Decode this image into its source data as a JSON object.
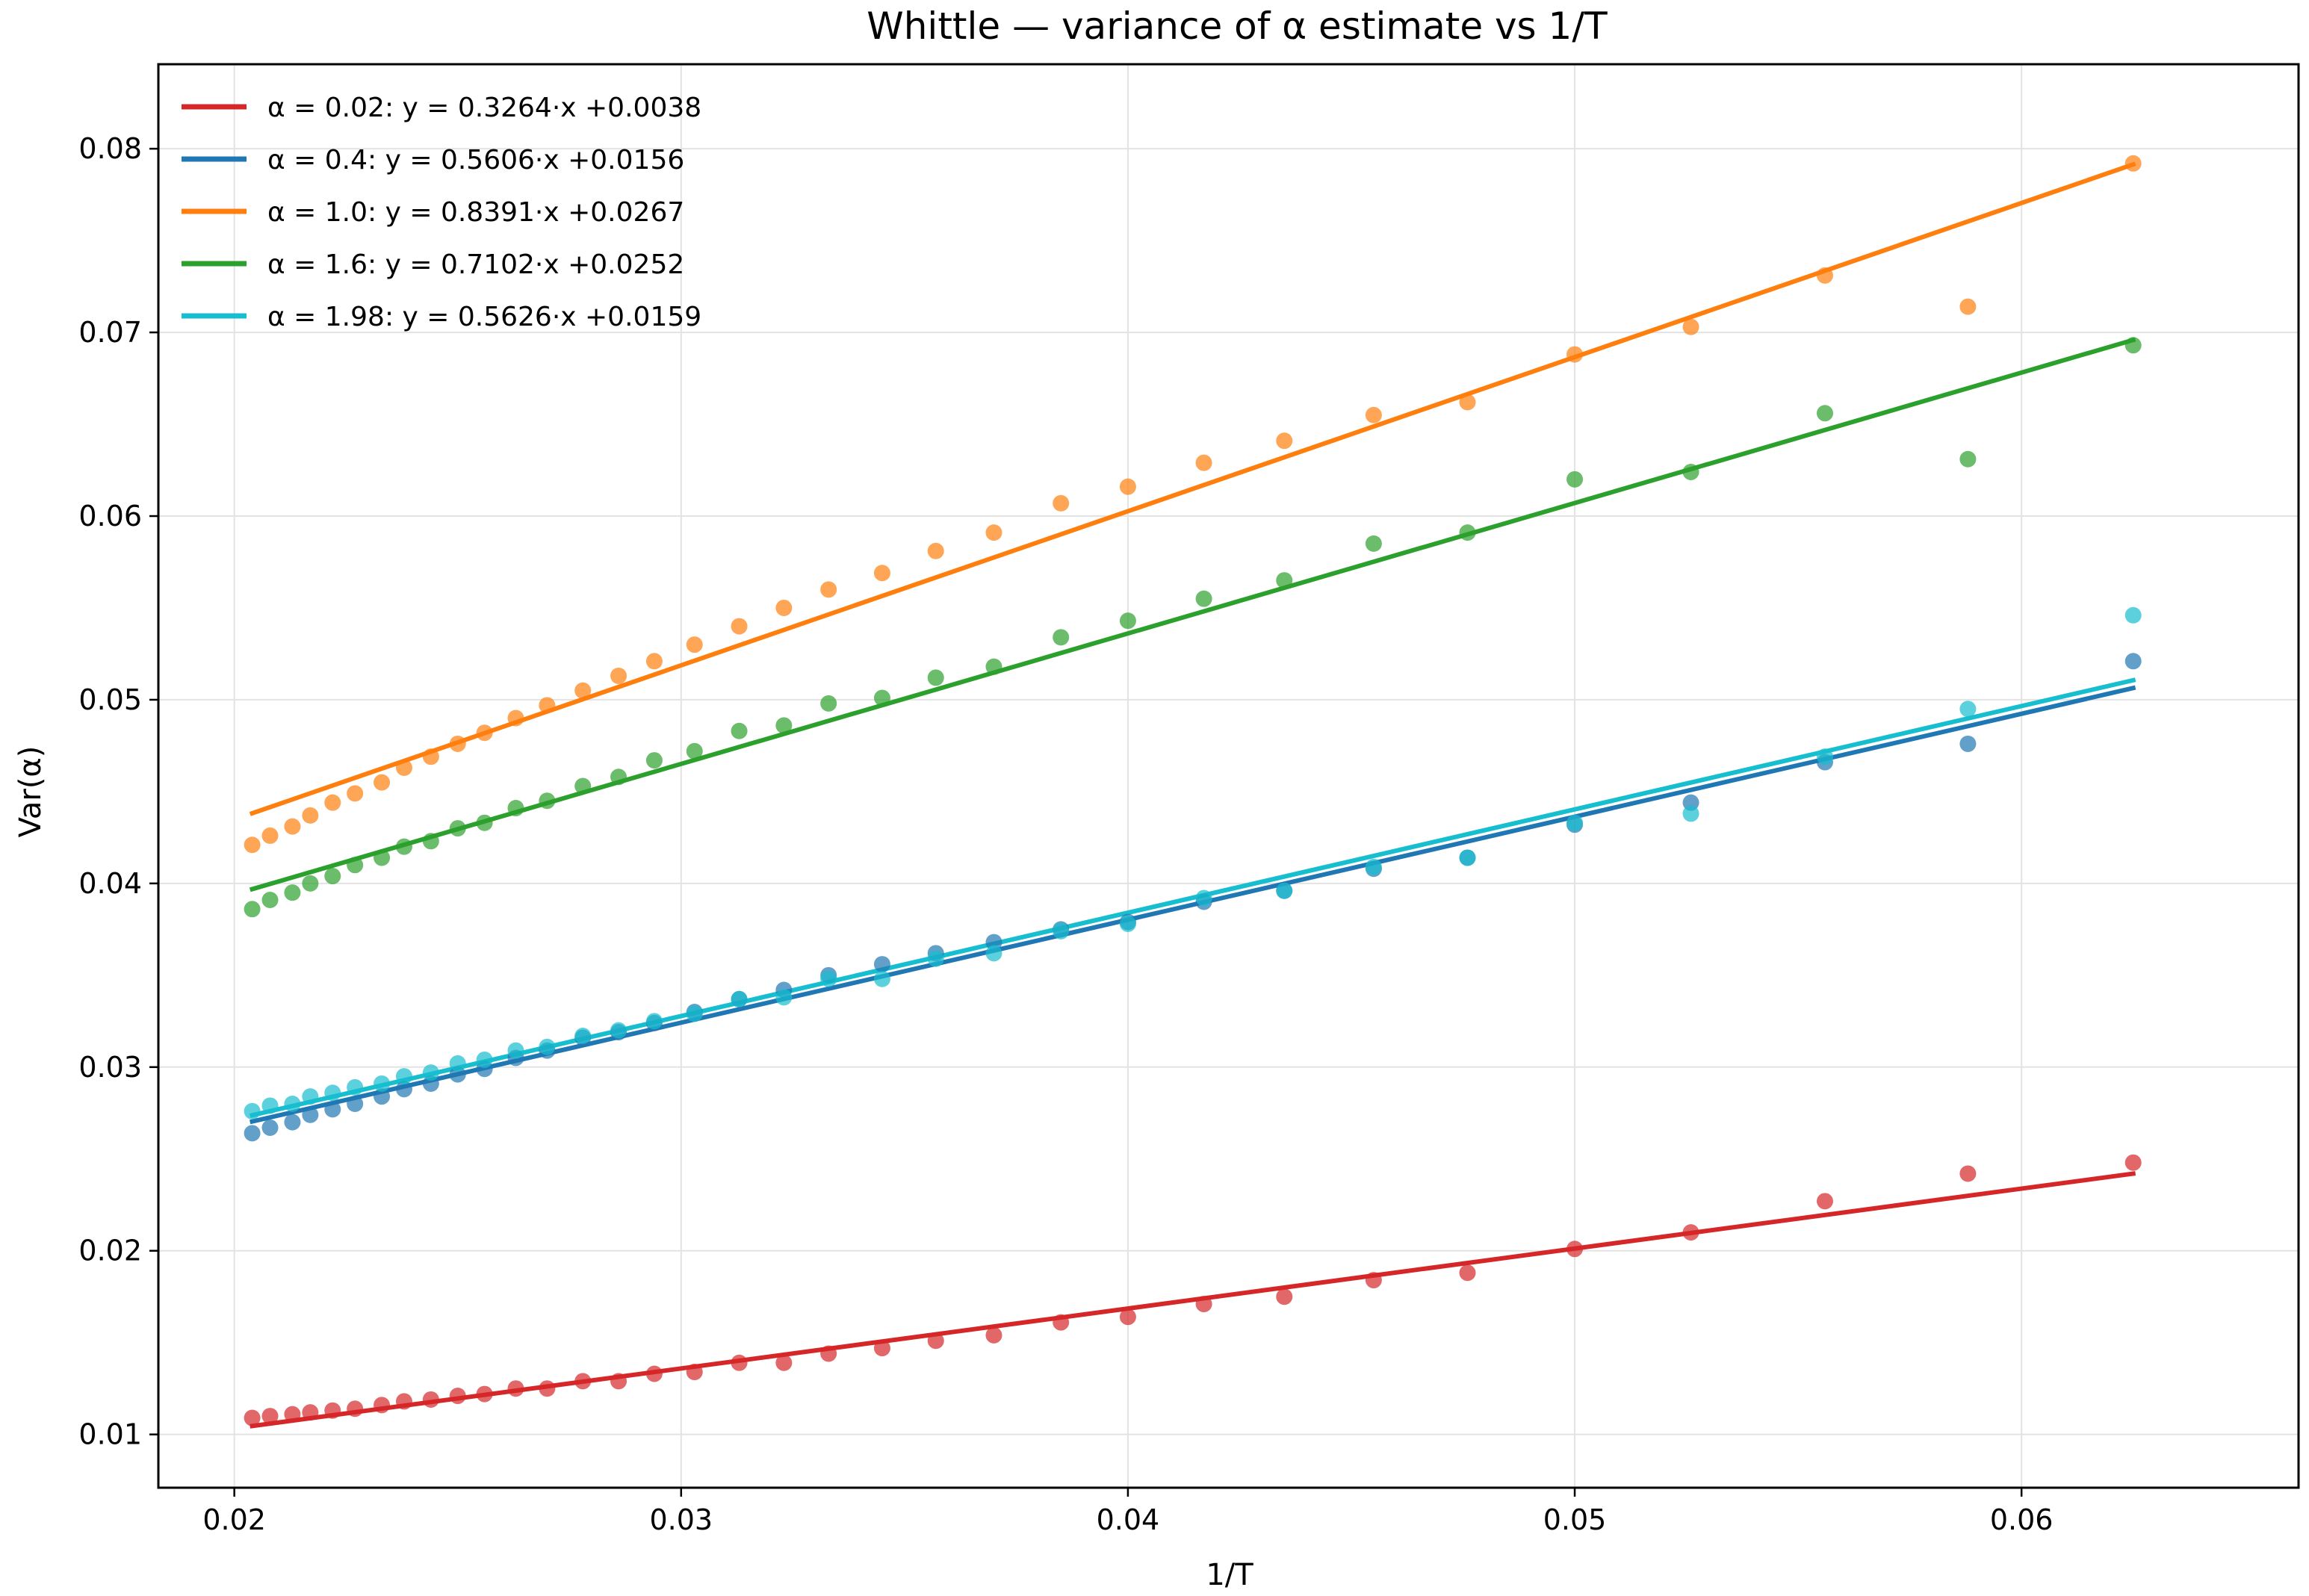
{
  "chart_data": {
    "type": "scatter",
    "title": "Whittle — variance of α estimate vs 1/T",
    "xlabel": "1/T",
    "ylabel": "Var(α)",
    "xlim": [
      0.0183,
      0.0662
    ],
    "ylim": [
      0.0071,
      0.0846
    ],
    "x_ticks": [
      "0.02",
      "0.03",
      "0.04",
      "0.05",
      "0.06"
    ],
    "x_tick_values": [
      0.02,
      0.03,
      0.04,
      0.05,
      0.06
    ],
    "y_ticks": [
      "0.01",
      "0.02",
      "0.03",
      "0.04",
      "0.05",
      "0.06",
      "0.07",
      "0.08"
    ],
    "y_tick_values": [
      0.01,
      0.02,
      0.03,
      0.04,
      0.05,
      0.06,
      0.07,
      0.08
    ],
    "grid": true,
    "legend_position": "top-left",
    "x": [
      0.0204,
      0.0208,
      0.0213,
      0.0217,
      0.0222,
      0.0227,
      0.0233,
      0.0238,
      0.0244,
      0.025,
      0.0256,
      0.0263,
      0.027,
      0.0278,
      0.0286,
      0.0294,
      0.0303,
      0.0313,
      0.0323,
      0.0333,
      0.0345,
      0.0357,
      0.037,
      0.0385,
      0.04,
      0.0417,
      0.0435,
      0.0455,
      0.0476,
      0.05,
      0.0526,
      0.0556,
      0.0588,
      0.0625
    ],
    "series": [
      {
        "name": "α = 0.02:  y = 0.3264·x +0.0038",
        "color": "#d62728",
        "slope": 0.3264,
        "intercept": 0.0038,
        "values": [
          0.0109,
          0.011,
          0.0111,
          0.0112,
          0.0113,
          0.0114,
          0.0116,
          0.0118,
          0.0119,
          0.0121,
          0.0122,
          0.0125,
          0.0125,
          0.0129,
          0.0129,
          0.0133,
          0.0134,
          0.0139,
          0.0139,
          0.0144,
          0.0147,
          0.0151,
          0.0154,
          0.0161,
          0.0164,
          0.0171,
          0.0175,
          0.0184,
          0.0188,
          0.0201,
          0.021,
          0.0227,
          0.0242,
          0.0248
        ]
      },
      {
        "name": "α = 0.4:  y = 0.5606·x +0.0156",
        "color": "#1f77b4",
        "slope": 0.5606,
        "intercept": 0.0156,
        "values": [
          0.0264,
          0.0267,
          0.027,
          0.0274,
          0.0277,
          0.028,
          0.0284,
          0.0288,
          0.0291,
          0.0296,
          0.0299,
          0.0305,
          0.0309,
          0.0316,
          0.0319,
          0.0324,
          0.033,
          0.0337,
          0.0342,
          0.035,
          0.0356,
          0.0362,
          0.0368,
          0.0375,
          0.0379,
          0.039,
          0.0396,
          0.0408,
          0.0414,
          0.0432,
          0.0444,
          0.0466,
          0.0476,
          0.0521
        ]
      },
      {
        "name": "α = 1.0:  y = 0.8391·x +0.0267",
        "color": "#ff7f0e",
        "slope": 0.8391,
        "intercept": 0.0267,
        "values": [
          0.0421,
          0.0426,
          0.0431,
          0.0437,
          0.0444,
          0.0449,
          0.0455,
          0.0463,
          0.0469,
          0.0476,
          0.0482,
          0.049,
          0.0497,
          0.0505,
          0.0513,
          0.0521,
          0.053,
          0.054,
          0.055,
          0.056,
          0.0569,
          0.0581,
          0.0591,
          0.0607,
          0.0616,
          0.0629,
          0.0641,
          0.0655,
          0.0662,
          0.0688,
          0.0703,
          0.0731,
          0.0714,
          0.0792
        ]
      },
      {
        "name": "α = 1.6:  y = 0.7102·x +0.0252",
        "color": "#2ca02c",
        "slope": 0.7102,
        "intercept": 0.0252,
        "values": [
          0.0386,
          0.0391,
          0.0395,
          0.04,
          0.0404,
          0.041,
          0.0414,
          0.042,
          0.0423,
          0.043,
          0.0433,
          0.0441,
          0.0445,
          0.0453,
          0.0458,
          0.0467,
          0.0472,
          0.0483,
          0.0486,
          0.0498,
          0.0501,
          0.0512,
          0.0518,
          0.0534,
          0.0543,
          0.0555,
          0.0565,
          0.0585,
          0.0591,
          0.062,
          0.0624,
          0.0656,
          0.0631,
          0.0693
        ]
      },
      {
        "name": "α = 1.98:  y = 0.5626·x +0.0159",
        "color": "#17becf",
        "slope": 0.5626,
        "intercept": 0.0159,
        "values": [
          0.0276,
          0.0279,
          0.028,
          0.0284,
          0.0286,
          0.0289,
          0.0291,
          0.0295,
          0.0297,
          0.0302,
          0.0304,
          0.0309,
          0.0311,
          0.0317,
          0.032,
          0.0325,
          0.0329,
          0.0337,
          0.0338,
          0.0348,
          0.0348,
          0.0359,
          0.0362,
          0.0374,
          0.0378,
          0.0392,
          0.0396,
          0.0409,
          0.0414,
          0.0433,
          0.0438,
          0.0469,
          0.0495,
          0.0546
        ]
      }
    ]
  }
}
